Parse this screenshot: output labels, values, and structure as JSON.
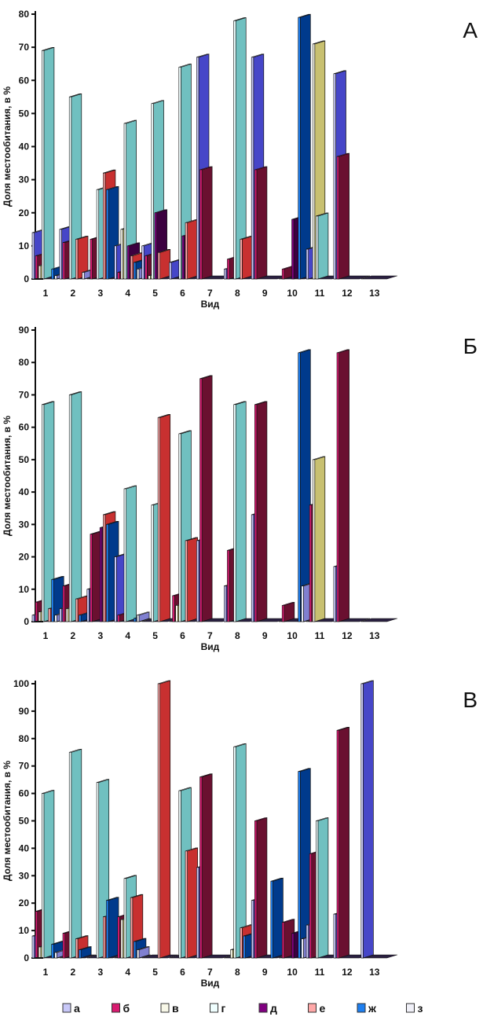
{
  "chart_data": [
    {
      "type": "bar",
      "panel_label": "А",
      "xlabel": "Вид",
      "ylabel": "Доля местообитания, в %",
      "ylim": [
        0,
        80
      ],
      "ystep": 10,
      "categories": [
        "1",
        "2",
        "3",
        "4",
        "5",
        "6",
        "7",
        "8",
        "9",
        "10",
        "11",
        "12",
        "13"
      ],
      "series": [
        {
          "name": "а",
          "values": [
            14,
            15,
            0,
            10,
            10,
            5,
            67,
            3,
            67,
            0,
            9,
            62,
            0
          ]
        },
        {
          "name": "б",
          "values": [
            7,
            11,
            12,
            2,
            7,
            0,
            33,
            6,
            33,
            3,
            0,
            37,
            0
          ]
        },
        {
          "name": "в",
          "values": [
            4,
            0,
            0,
            15,
            1,
            0,
            0,
            0,
            0,
            0,
            71,
            0,
            0
          ]
        },
        {
          "name": "г",
          "values": [
            69,
            55,
            27,
            47,
            53,
            64,
            0,
            78,
            0,
            0,
            19,
            0,
            0
          ]
        },
        {
          "name": "д",
          "values": [
            0,
            0,
            0,
            10,
            20,
            13,
            0,
            0,
            0,
            18,
            0,
            0,
            0
          ]
        },
        {
          "name": "е",
          "values": [
            0,
            12,
            32,
            7,
            8,
            17,
            0,
            12,
            0,
            0,
            0,
            0,
            0
          ]
        },
        {
          "name": "ж",
          "values": [
            3,
            0,
            27,
            5,
            0,
            0,
            0,
            0,
            0,
            79,
            0,
            0,
            0
          ]
        },
        {
          "name": "з",
          "values": [
            1,
            2,
            0,
            3,
            0,
            0,
            0,
            0,
            0,
            0,
            0,
            0,
            0
          ]
        }
      ]
    },
    {
      "type": "bar",
      "panel_label": "Б",
      "xlabel": "Вид",
      "ylabel": "Доля местообитания, в %",
      "ylim": [
        0,
        90
      ],
      "ystep": 10,
      "categories": [
        "1",
        "2",
        "3",
        "4",
        "5",
        "6",
        "7",
        "8",
        "9",
        "10",
        "11",
        "12",
        "13"
      ],
      "series": [
        {
          "name": "а",
          "values": [
            2,
            4,
            10,
            20,
            0,
            0,
            25,
            11,
            33,
            0,
            0,
            17,
            0
          ]
        },
        {
          "name": "б",
          "values": [
            6,
            11,
            27,
            2,
            0,
            8,
            75,
            22,
            67,
            5,
            36,
            83,
            0
          ]
        },
        {
          "name": "в",
          "values": [
            3,
            4,
            0,
            0,
            0,
            5,
            0,
            0,
            0,
            0,
            50,
            0,
            0
          ]
        },
        {
          "name": "г",
          "values": [
            67,
            70,
            0,
            41,
            36,
            58,
            0,
            67,
            0,
            0,
            0,
            0,
            0
          ]
        },
        {
          "name": "д",
          "values": [
            0,
            0,
            29,
            0,
            0,
            0,
            0,
            0,
            0,
            0,
            0,
            0,
            0
          ]
        },
        {
          "name": "е",
          "values": [
            4,
            7,
            33,
            0,
            63,
            25,
            0,
            0,
            0,
            0,
            0,
            0,
            0
          ]
        },
        {
          "name": "ж",
          "values": [
            13,
            2,
            30,
            1,
            0,
            0,
            0,
            0,
            0,
            83,
            0,
            0,
            0
          ]
        },
        {
          "name": "з",
          "values": [
            2,
            0,
            0,
            2,
            0,
            0,
            0,
            0,
            0,
            11,
            0,
            0,
            0
          ]
        }
      ]
    },
    {
      "type": "bar",
      "panel_label": "В",
      "xlabel": "Вид",
      "ylabel": "Доля местообитания, в %",
      "ylim": [
        0,
        100
      ],
      "ystep": 10,
      "categories": [
        "1",
        "2",
        "3",
        "4",
        "5",
        "6",
        "7",
        "8",
        "9",
        "10",
        "11",
        "12",
        "13"
      ],
      "series": [
        {
          "name": "а",
          "values": [
            8,
            0,
            0,
            0,
            0,
            0,
            33,
            0,
            21,
            0,
            12,
            16,
            100
          ]
        },
        {
          "name": "б",
          "values": [
            17,
            9,
            0,
            15,
            0,
            0,
            66,
            0,
            50,
            13,
            38,
            83,
            0
          ]
        },
        {
          "name": "в",
          "values": [
            4,
            0,
            0,
            14,
            0,
            0,
            0,
            3,
            0,
            0,
            0,
            0,
            0
          ]
        },
        {
          "name": "г",
          "values": [
            60,
            75,
            64,
            29,
            0,
            61,
            0,
            77,
            0,
            0,
            50,
            0,
            0
          ]
        },
        {
          "name": "д",
          "values": [
            0,
            0,
            0,
            0,
            0,
            0,
            0,
            0,
            0,
            9,
            0,
            0,
            0
          ]
        },
        {
          "name": "е",
          "values": [
            0,
            7,
            15,
            22,
            100,
            39,
            0,
            11,
            0,
            0,
            0,
            0,
            0
          ]
        },
        {
          "name": "ж",
          "values": [
            5,
            3,
            21,
            6,
            0,
            0,
            0,
            8,
            28,
            68,
            0,
            0,
            0
          ]
        },
        {
          "name": "з",
          "values": [
            2,
            0,
            0,
            3,
            0,
            0,
            0,
            0,
            0,
            7,
            0,
            0,
            0
          ]
        }
      ]
    }
  ],
  "legend": {
    "position": "bottom",
    "items": [
      {
        "label": "а",
        "color": "#c8c8f8",
        "side": "#4646c8"
      },
      {
        "label": "б",
        "color": "#d81b70",
        "side": "#6a1030"
      },
      {
        "label": "в",
        "color": "#f8f8e8",
        "side": "#c8c070"
      },
      {
        "label": "г",
        "color": "#f0ffff",
        "side": "#70c0c0"
      },
      {
        "label": "д",
        "color": "#800080",
        "side": "#3c0040"
      },
      {
        "label": "е",
        "color": "#ffa8a8",
        "side": "#c83030"
      },
      {
        "label": "ж",
        "color": "#1e7ff0",
        "side": "#003a8c"
      },
      {
        "label": "з",
        "color": "#f0f0f8",
        "side": "#8080d0"
      }
    ]
  }
}
